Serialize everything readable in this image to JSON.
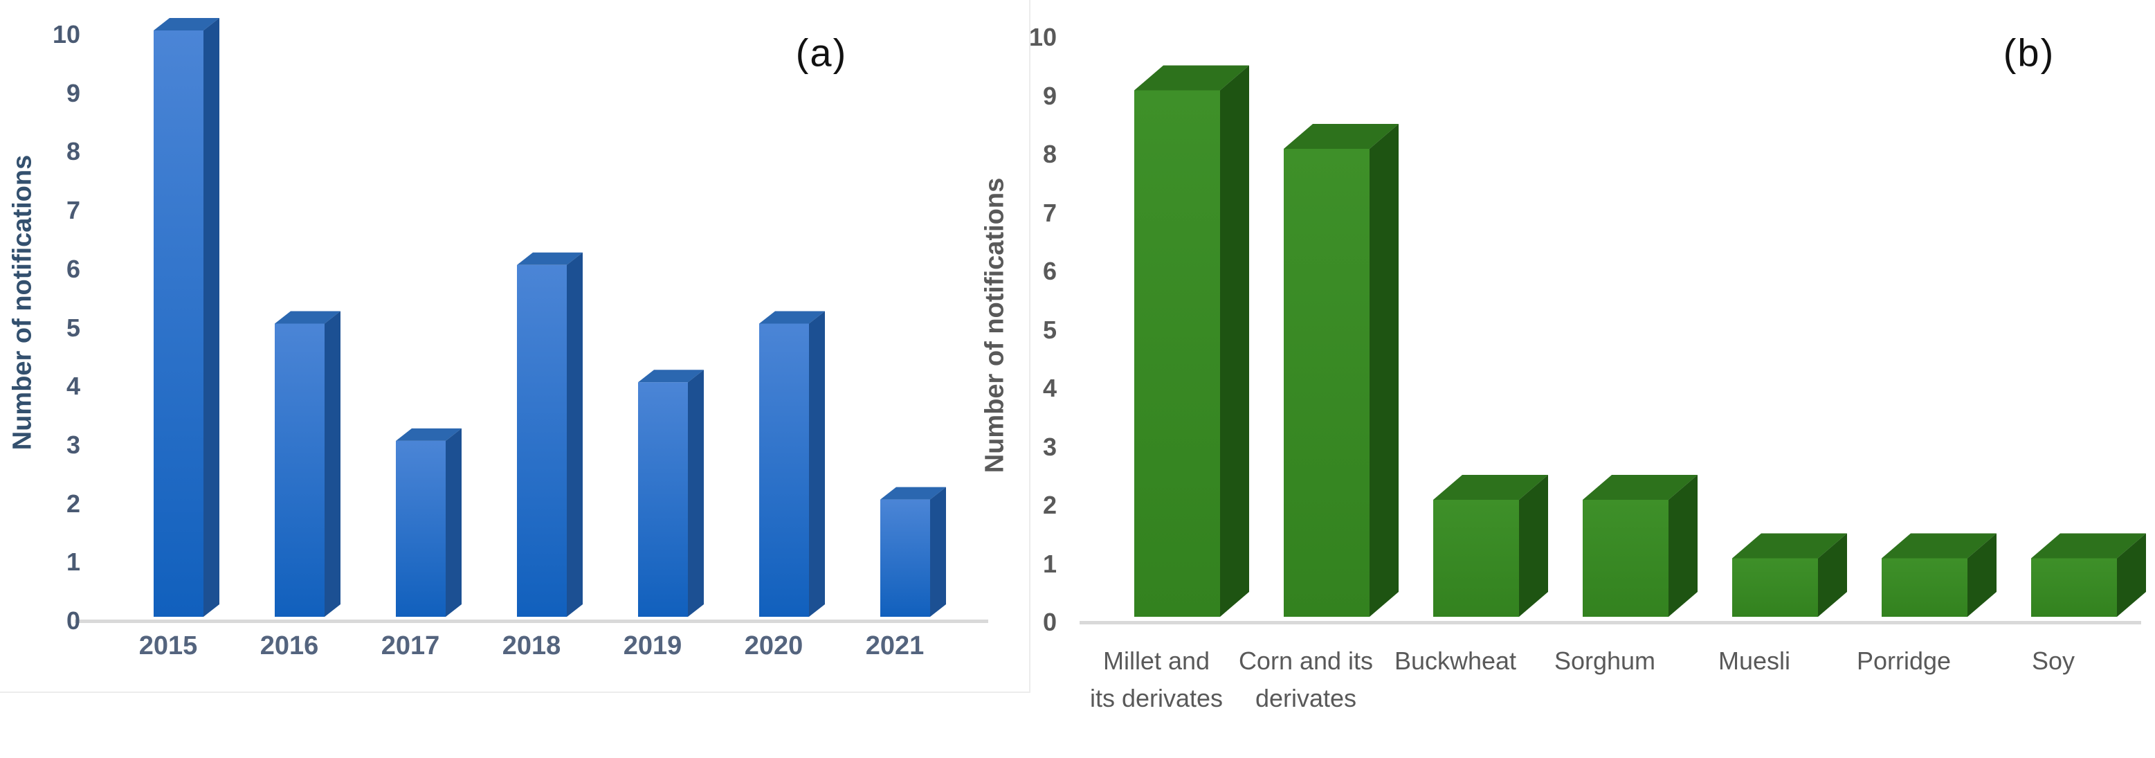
{
  "figure": {
    "background": "#ffffff",
    "description": "Two-panel 3D bar chart figure of RASFF-style notification counts"
  },
  "chart_data": [
    {
      "id": "a",
      "type": "bar",
      "panel_label": "(a)",
      "title": "",
      "xlabel": "",
      "ylabel": "Number of notifications",
      "categories": [
        "2015",
        "2016",
        "2017",
        "2018",
        "2019",
        "2020",
        "2021"
      ],
      "values": [
        10,
        5,
        3,
        6,
        4,
        5,
        2
      ],
      "ylim": [
        0,
        10
      ],
      "yticks": [
        0,
        1,
        2,
        3,
        4,
        5,
        6,
        7,
        8,
        9,
        10
      ],
      "grid": false,
      "legend": false,
      "bar_style": "3d-box",
      "colors": {
        "front_top": "#4b85d6",
        "front_bottom": "#1160bd",
        "side": "#1c5093",
        "top": "#2b67b0",
        "axis_line": "#d9d9d9",
        "tick_text": "#4a5a73",
        "category_text": "#54647e",
        "ylabel_text": "#33506e",
        "panel_label_text": "#111111"
      }
    },
    {
      "id": "b",
      "type": "bar",
      "panel_label": "(b)",
      "title": "",
      "xlabel": "",
      "ylabel": "Number of notifications",
      "categories": [
        "Millet and its derivates",
        "Corn and its derivates",
        "Buckwheat",
        "Sorghum",
        "Muesli",
        "Porridge",
        "Soy"
      ],
      "values": [
        9,
        8,
        2,
        2,
        1,
        1,
        1
      ],
      "ylim": [
        0,
        10
      ],
      "yticks": [
        0,
        1,
        2,
        3,
        4,
        5,
        6,
        7,
        8,
        9,
        10
      ],
      "grid": false,
      "legend": false,
      "bar_style": "3d-box",
      "colors": {
        "front_top": "#3e9029",
        "front_bottom": "#33821f",
        "side": "#1e5412",
        "top": "#2d721c",
        "axis_line": "#d9d9d9",
        "tick_text": "#595959",
        "category_text": "#595959",
        "ylabel_text": "#595959",
        "panel_label_text": "#111111"
      }
    }
  ]
}
